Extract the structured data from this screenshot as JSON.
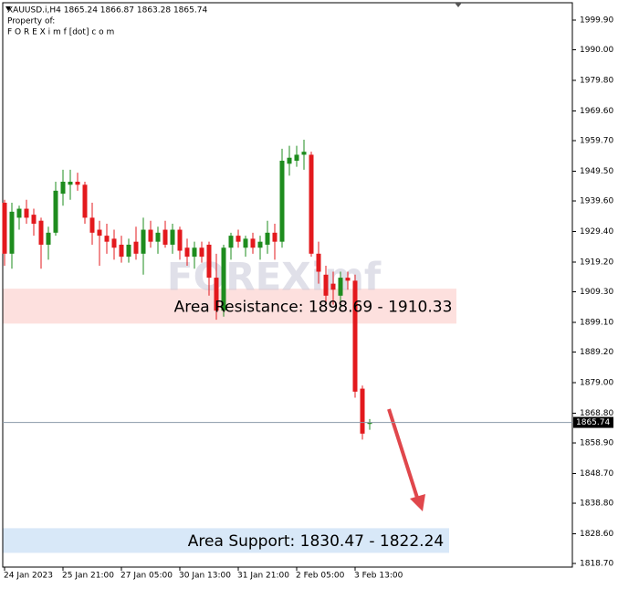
{
  "chart_data": {
    "type": "candlestick",
    "header": "XAUUSD.i,H4  1865.24 1866.87 1863.28 1865.74",
    "subtitle": [
      "Property of:",
      "F O R E X i m f [dot] c o m"
    ],
    "watermark": "FOREXimf",
    "categories": [
      "24 Jan 2023",
      null,
      null,
      null,
      null,
      null,
      null,
      null,
      "25 Jan 21:00",
      null,
      null,
      null,
      null,
      null,
      null,
      null,
      "27 Jan 05:00",
      null,
      null,
      null,
      null,
      null,
      null,
      null,
      "30 Jan 13:00",
      null,
      null,
      null,
      null,
      null,
      null,
      null,
      "31 Jan 21:00",
      null,
      null,
      null,
      null,
      null,
      null,
      null,
      "2 Feb 05:00",
      null,
      null,
      null,
      null,
      null,
      null,
      null,
      "3 Feb 13:00",
      null,
      null
    ],
    "open": [
      1939,
      1922,
      1934,
      1937,
      1935,
      1933,
      1925,
      1929,
      1942,
      1945,
      1946,
      1945,
      1934,
      1930,
      1928,
      1927,
      1925,
      1921,
      1926,
      1922,
      1930,
      1926,
      1930,
      1925,
      1930,
      1924,
      1921,
      1924,
      1925,
      1914,
      1903,
      1924,
      1928,
      1924,
      1927,
      1924,
      1925,
      1929,
      1926,
      1952,
      1953,
      1955,
      1955,
      1922,
      1915,
      1912,
      1908,
      1914,
      1913,
      1877,
      1865.24
    ],
    "high": [
      1940,
      1939,
      1938,
      1940,
      1937,
      1934,
      1931,
      1946,
      1950,
      1950,
      1949,
      1946,
      1939,
      1933,
      1932,
      1930,
      1928,
      1927,
      1931,
      1934,
      1933,
      1931,
      1933,
      1932,
      1931,
      1927,
      1926,
      1926,
      1926,
      1922,
      1925,
      1929,
      1930,
      1928,
      1929,
      1928,
      1933,
      1932,
      1957,
      1958,
      1958,
      1960,
      1956,
      1926,
      1918,
      1916,
      1916,
      1916,
      1915,
      1878,
      1866.87
    ],
    "low": [
      1918,
      1917,
      1930,
      1932,
      1928,
      1917,
      1920,
      1928,
      1938,
      1940,
      1943,
      1932,
      1925,
      1918,
      1922,
      1920,
      1919,
      1919,
      1920,
      1915,
      1924,
      1922,
      1924,
      1922,
      1920,
      1918,
      1917,
      1919,
      1908,
      1900,
      1901,
      1920,
      1924,
      1921,
      1922,
      1920,
      1922,
      1920,
      1924,
      1948,
      1951,
      1950,
      1921,
      1912,
      1905,
      1905,
      1904,
      1910,
      1874,
      1860,
      1863.28
    ],
    "close": [
      1922,
      1936,
      1937,
      1934,
      1932,
      1925,
      1929,
      1943,
      1946,
      1946,
      1945,
      1934,
      1929,
      1928,
      1926,
      1924,
      1921,
      1925,
      1922,
      1930,
      1926,
      1929,
      1925,
      1930,
      1923,
      1921,
      1924,
      1921,
      1914,
      1903,
      1924,
      1928,
      1926,
      1927,
      1924,
      1926,
      1929,
      1926,
      1953,
      1954,
      1955,
      1956,
      1922,
      1916,
      1908,
      1910,
      1914,
      1913,
      1876,
      1862,
      1865.74
    ],
    "up_color": "#1e8c1e",
    "down_color": "#e3191d",
    "ylim": [
      1817.8,
      2006.6
    ],
    "yticks": [
      {
        "value": 1999.9,
        "label": "1999.90"
      },
      {
        "value": 1990,
        "label": "1990.00"
      },
      {
        "value": 1979.8,
        "label": "1979.80"
      },
      {
        "value": 1969.6,
        "label": "1969.60"
      },
      {
        "value": 1959.7,
        "label": "1959.70"
      },
      {
        "value": 1949.5,
        "label": "1949.50"
      },
      {
        "value": 1939.6,
        "label": "1939.60"
      },
      {
        "value": 1929.4,
        "label": "1929.40"
      },
      {
        "value": 1919.2,
        "label": "1919.20"
      },
      {
        "value": 1909.3,
        "label": "1909.30"
      },
      {
        "value": 1899.1,
        "label": "1899.10"
      },
      {
        "value": 1889.2,
        "label": "1889.20"
      },
      {
        "value": 1879,
        "label": "1879.00"
      },
      {
        "value": 1868.8,
        "label": "1868.80"
      },
      {
        "value": 1858.9,
        "label": "1858.90"
      },
      {
        "value": 1848.7,
        "label": "1848.70"
      },
      {
        "value": 1838.8,
        "label": "1838.80"
      },
      {
        "value": 1828.6,
        "label": "1828.60"
      },
      {
        "value": 1818.7,
        "label": "1818.70"
      }
    ],
    "zones": [
      {
        "label": "Area Resistance: 1898.69 - 1910.33",
        "low": 1898.69,
        "high": 1910.33,
        "color": "#fde0de"
      },
      {
        "label": "Area Support: 1830.47 - 1822.24",
        "low": 1822.24,
        "high": 1830.47,
        "color": "#d8e8f8"
      }
    ]
  }
}
